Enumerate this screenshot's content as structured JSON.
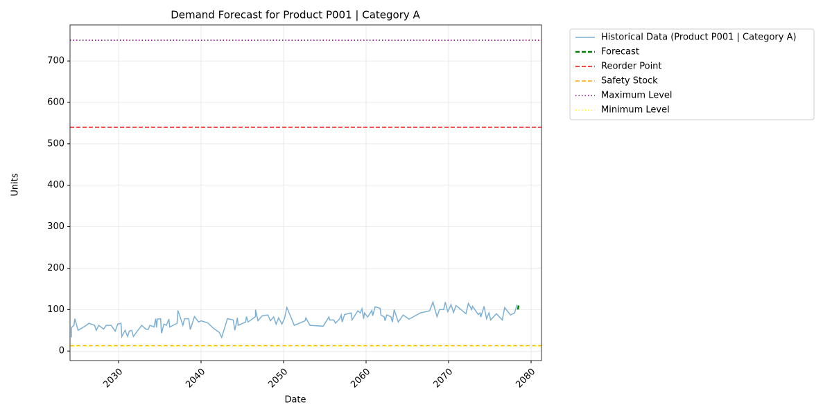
{
  "chart_data": {
    "type": "line",
    "title": "Demand Forecast for Product P001 | Category A",
    "x_label": "Date",
    "y_label": "Units",
    "xlim": [
      2024.12,
      2081.26
    ],
    "ylim": [
      -23,
      787
    ],
    "xticks": [
      2030,
      2040,
      2050,
      2060,
      2070,
      2080
    ],
    "yticks": [
      0,
      100,
      200,
      300,
      400,
      500,
      600,
      700
    ],
    "grid": true,
    "legend": "outside upper right",
    "series": [
      {
        "name": "Historical Data (Product P001 | Category A)",
        "color": "#7bafd4",
        "style": "solid",
        "x": [
          2024.3,
          2024.3,
          2024.6,
          2024.7,
          2025.1,
          2026.1,
          2026.4,
          2027.1,
          2027.3,
          2027.6,
          2028.2,
          2028.5,
          2029.1,
          2029.6,
          2029.9,
          2030.3,
          2030.4,
          2030.8,
          2031.1,
          2031.3,
          2031.6,
          2031.8,
          2032.8,
          2033.3,
          2033.6,
          2033.8,
          2034.3,
          2034.5,
          2034.6,
          2034.7,
          2035.1,
          2035.2,
          2035.5,
          2035.8,
          2036.1,
          2036.2,
          2037.1,
          2037.2,
          2037.8,
          2038.0,
          2038.5,
          2038.7,
          2039.2,
          2039.7,
          2040.0,
          2040.8,
          2041.5,
          2042.2,
          2042.5,
          2043.2,
          2043.9,
          2044.1,
          2044.4,
          2044.5,
          2045.4,
          2045.5,
          2045.7,
          2046.6,
          2046.6,
          2046.9,
          2047.4,
          2048.1,
          2048.4,
          2048.8,
          2049.1,
          2049.4,
          2049.8,
          2050.1,
          2050.4,
          2051.3,
          2052.6,
          2052.7,
          2053.2,
          2054.8,
          2055.5,
          2055.6,
          2056.1,
          2056.3,
          2056.8,
          2057.0,
          2057.1,
          2057.4,
          2058.2,
          2058.3,
          2059.0,
          2059.3,
          2059.5,
          2059.7,
          2059.8,
          2060.2,
          2060.7,
          2060.8,
          2061.1,
          2061.7,
          2061.8,
          2062.2,
          2062.3,
          2062.5,
          2063.0,
          2063.2,
          2063.4,
          2063.9,
          2064.5,
          2065.2,
          2066.6,
          2067.7,
          2068.1,
          2068.6,
          2068.9,
          2069.4,
          2069.6,
          2069.9,
          2070.3,
          2070.6,
          2070.9,
          2072.1,
          2072.4,
          2072.8,
          2072.9,
          2073.6,
          2073.8,
          2073.9,
          2074.3,
          2074.6,
          2074.9,
          2075.1,
          2075.8,
          2076.5,
          2076.8,
          2077.5,
          2078.0,
          2078.3
        ],
        "values": [
          33,
          57,
          62,
          78,
          50,
          62,
          67,
          62,
          50,
          62,
          53,
          62,
          62,
          48,
          65,
          67,
          35,
          50,
          35,
          48,
          50,
          35,
          62,
          53,
          52,
          62,
          58,
          78,
          57,
          77,
          78,
          43,
          65,
          62,
          77,
          58,
          67,
          98,
          62,
          78,
          78,
          52,
          83,
          70,
          73,
          68,
          55,
          45,
          33,
          78,
          75,
          50,
          80,
          62,
          70,
          83,
          70,
          83,
          100,
          73,
          85,
          87,
          73,
          82,
          65,
          80,
          65,
          78,
          105,
          62,
          73,
          80,
          62,
          60,
          82,
          75,
          75,
          67,
          78,
          87,
          70,
          88,
          92,
          75,
          97,
          92,
          102,
          78,
          92,
          82,
          98,
          85,
          107,
          103,
          87,
          82,
          73,
          87,
          83,
          70,
          100,
          70,
          87,
          77,
          92,
          97,
          118,
          83,
          100,
          100,
          118,
          95,
          112,
          93,
          110,
          90,
          115,
          100,
          108,
          88,
          92,
          82,
          108,
          78,
          92,
          75,
          90,
          75,
          105,
          87,
          92,
          112
        ]
      },
      {
        "name": "Forecast",
        "color": "#008000",
        "style": "dashed",
        "width": 2.5,
        "x": [
          2078.4,
          2078.5
        ],
        "values": [
          100,
          112
        ]
      }
    ],
    "hlines": [
      {
        "name": "Reorder Point",
        "color": "#ff0000",
        "style": "dashed",
        "value": 540
      },
      {
        "name": "Safety Stock",
        "color": "#ffa500",
        "style": "dashed",
        "value": 13
      },
      {
        "name": "Maximum Level",
        "color": "#800080",
        "style": "dotted",
        "value": 750
      },
      {
        "name": "Minimum Level",
        "color": "#ffff00",
        "style": "dotted",
        "value": 12
      }
    ]
  }
}
